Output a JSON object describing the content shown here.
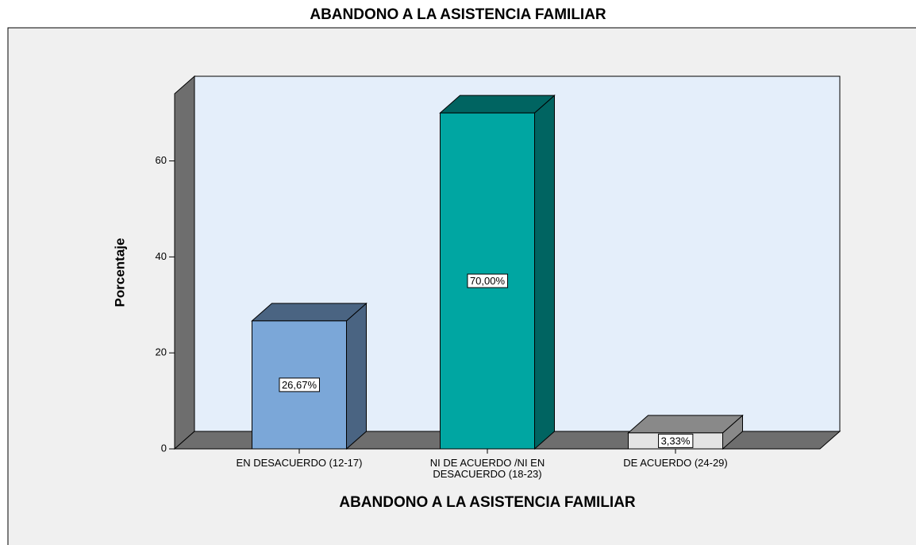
{
  "chart_data": {
    "type": "bar3d",
    "title": "ABANDONO A LA ASISTENCIA FAMILIAR",
    "x_label": "ABANDONO A LA ASISTENCIA FAMILIAR",
    "y_label": "Porcentaje",
    "categories": [
      "EN DESACUERDO (12-17)",
      "NI DE ACUERDO /NI EN DESACUERDO (18-23)",
      "DE ACUERDO (24-29)"
    ],
    "values": [
      26.67,
      70,
      3.33
    ],
    "value_labels": [
      "26,67%",
      "70,00%",
      "3,33%"
    ],
    "colors": [
      "#7ba7d8",
      "#00a6a2",
      "#e4e4e4"
    ],
    "ylim": [
      0,
      74
    ],
    "yticks": [
      0,
      20,
      40,
      60
    ]
  }
}
